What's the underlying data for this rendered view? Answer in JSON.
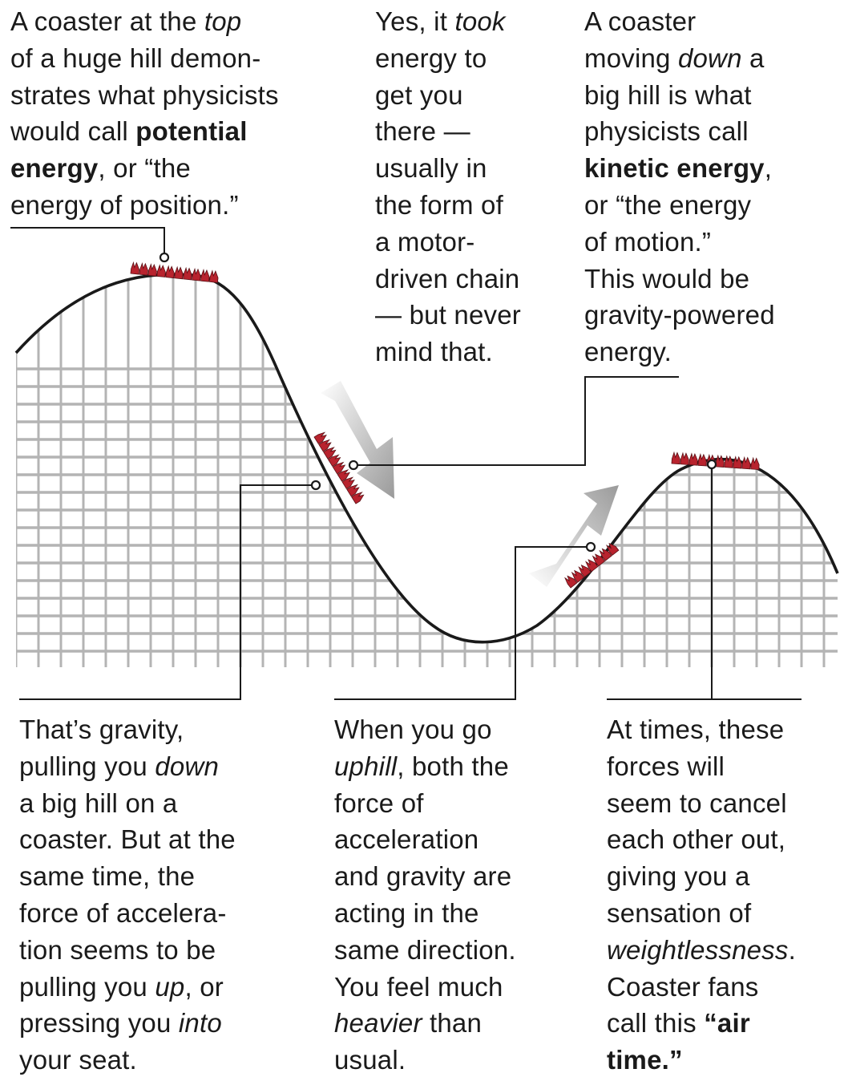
{
  "captions": {
    "top_left": {
      "l1a": "A coaster at the ",
      "l1b": "top",
      "l2": "of a huge hill demon-",
      "l3": "strates what physicists",
      "l4a": "would call ",
      "l4b": "potential",
      "l5a": "energy",
      "l5b": ", or “the",
      "l6": "energy of position.”"
    },
    "top_middle": {
      "l1a": "Yes, it ",
      "l1b": "took",
      "l2": "energy to",
      "l3": "get you",
      "l4": "there —",
      "l5": "usually in",
      "l6": "the form of",
      "l7": "a motor-",
      "l8": "driven chain",
      "l9": "— but never",
      "l10": "mind that."
    },
    "top_right": {
      "l1": "A coaster",
      "l2a": "moving ",
      "l2b": "down",
      "l2c": " a",
      "l3": "big hill is what",
      "l4": "physicists call",
      "l5a": "kinetic energy",
      "l5b": ",",
      "l6": "or “the energy",
      "l7": "of motion.”",
      "l8": "This would be",
      "l9": "gravity-powered",
      "l10": "energy."
    },
    "bottom_left": {
      "l1": "That’s gravity,",
      "l2a": "pulling you ",
      "l2b": "down",
      "l3": "a big hill on a",
      "l4": "coaster. But at the",
      "l5": "same time, the",
      "l6": "force of accelera-",
      "l7": "tion seems to be",
      "l8a": "pulling you ",
      "l8b": "up",
      "l8c": ", or",
      "l9a": "pressing you ",
      "l9b": "into",
      "l10": "your seat."
    },
    "bottom_middle": {
      "l1": "When you go",
      "l2a": "uphill",
      "l2b": ", both the",
      "l3": "force of",
      "l4": "acceleration",
      "l5": "and gravity are",
      "l6": "acting in the",
      "l7": "same direction.",
      "l8": "You feel much",
      "l9a": "heavier",
      "l9b": " than",
      "l10": "usual."
    },
    "bottom_right": {
      "l1": "At times, these",
      "l2": "forces will",
      "l3": "seem to cancel",
      "l4": "each other out,",
      "l5": "giving you a",
      "l6": "sensation of",
      "l7a": "weightlessness",
      "l7b": ".",
      "l8": "Coaster fans",
      "l9a": "call this ",
      "l9b": "“air",
      "l10": "time.”"
    }
  },
  "colors": {
    "track": "#1a1a1a",
    "scaffold": "#b4b4b4",
    "car": "#b8232e",
    "leader": "#1a1a1a",
    "arrow_dark": "#9a9a9a",
    "arrow_light": "#ffffff"
  },
  "icons": {
    "coaster_top": "coaster-train-icon",
    "coaster_descending": "coaster-train-icon",
    "coaster_ascending": "coaster-train-icon",
    "coaster_second_top": "coaster-train-icon",
    "arrow_down": "downhill-arrow-icon",
    "arrow_up": "uphill-arrow-icon"
  }
}
